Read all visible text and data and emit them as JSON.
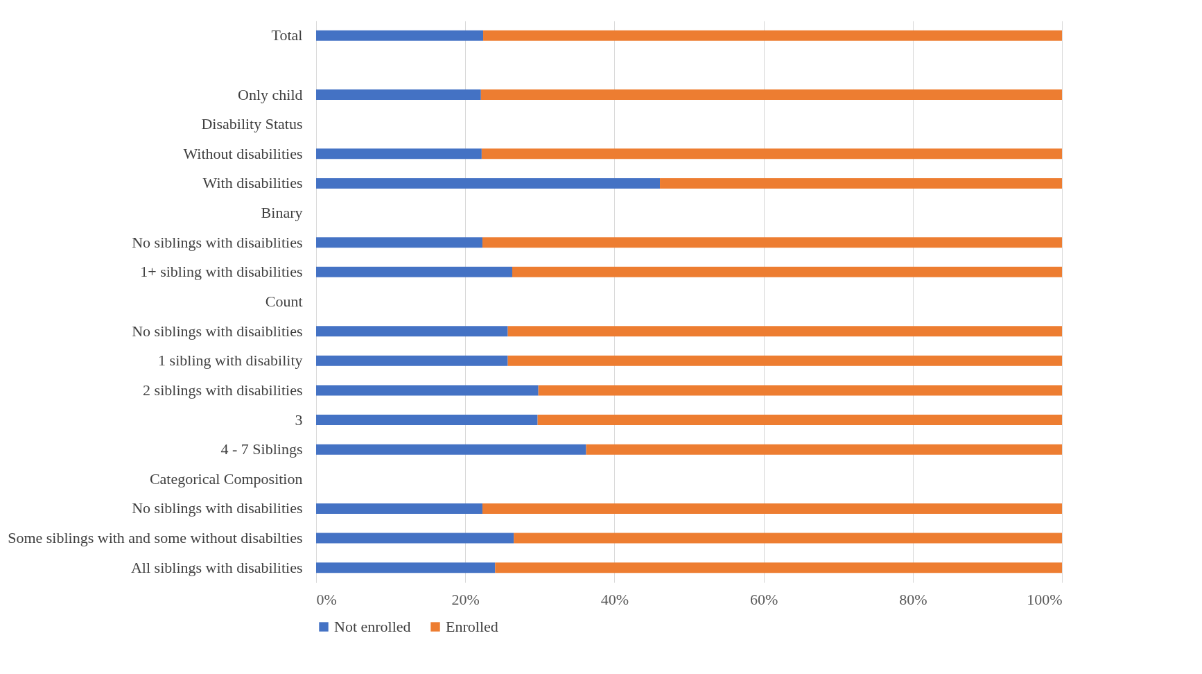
{
  "chart_data": {
    "type": "bar",
    "orientation": "horizontal",
    "stacked": true,
    "categories": [
      "Total",
      null,
      "Only child",
      "Disability Status",
      "Without disabilities",
      "With disabilities",
      "Binary",
      "No siblings with disaiblities",
      "1+ sibling with disabilities",
      "Count",
      "No siblings with disaiblities",
      "1 sibling with disability",
      "2 siblings with disabilities",
      "3",
      "4 - 7 Siblings",
      "Categorical Composition",
      "No siblings with disabilities",
      "Some siblings with and some without disabilties",
      "All siblings with disabilities"
    ],
    "series": [
      {
        "name": "Not enrolled",
        "color": "#4472c4",
        "values": [
          22.4,
          null,
          22.1,
          null,
          22.2,
          46.1,
          null,
          22.3,
          26.3,
          null,
          25.7,
          25.7,
          29.8,
          29.7,
          36.2,
          null,
          22.3,
          26.5,
          24.0
        ]
      },
      {
        "name": "Enrolled",
        "color": "#ed7d31",
        "values": [
          77.6,
          null,
          77.9,
          null,
          77.8,
          53.9,
          null,
          77.7,
          73.7,
          null,
          74.3,
          74.3,
          70.2,
          70.3,
          63.8,
          null,
          77.7,
          73.5,
          76.0
        ]
      }
    ],
    "xlim": [
      0,
      100
    ],
    "xticks": [
      {
        "value": 0,
        "label": "0%"
      },
      {
        "value": 20,
        "label": "20%"
      },
      {
        "value": 40,
        "label": "40%"
      },
      {
        "value": 60,
        "label": "60%"
      },
      {
        "value": 80,
        "label": "80%"
      },
      {
        "value": 100,
        "label": "100%"
      }
    ],
    "grid": "x",
    "legend": "bottom"
  }
}
